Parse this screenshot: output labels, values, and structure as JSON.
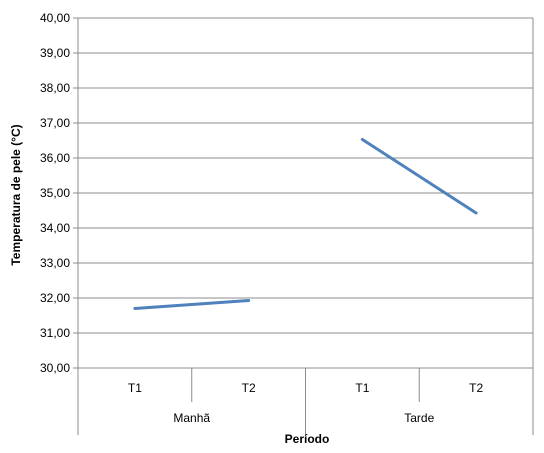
{
  "chart_data": {
    "type": "line",
    "title": "",
    "ylabel": "Temperatura de pele (°C)",
    "xlabel": "Período",
    "ylim": [
      30,
      40
    ],
    "yticks": [
      "30,00",
      "31,00",
      "32,00",
      "33,00",
      "34,00",
      "35,00",
      "36,00",
      "37,00",
      "38,00",
      "39,00",
      "40,00"
    ],
    "grid": true,
    "legend": "none",
    "groups": [
      {
        "label": "Manhã",
        "categories": [
          "T1",
          "T2"
        ],
        "values": [
          31.7,
          31.93
        ]
      },
      {
        "label": "Tarde",
        "categories": [
          "T1",
          "T2"
        ],
        "values": [
          36.53,
          34.43
        ]
      }
    ],
    "line_color": "#4f81bd",
    "grid_color": "#8c8c8c"
  }
}
